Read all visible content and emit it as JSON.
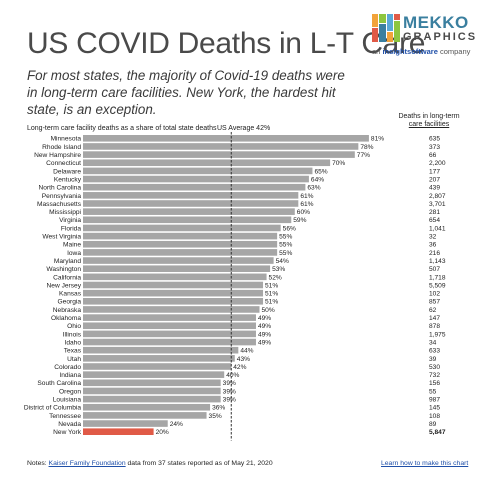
{
  "brand": {
    "word1": "MEKKO",
    "word2": "GRAPHICS",
    "tagline_prefix": "an ",
    "tagline_brand": "insightsoftware",
    "tagline_suffix": " company"
  },
  "header": {
    "title": "US COVID Deaths in L-T Care",
    "subtitle": "For most states, the majority of Covid-19 deaths were in long-term care facilities. New York, the hardest hit state, is an exception."
  },
  "colors": {
    "bar": "#a6a6a6",
    "highlight": "#e05a47",
    "avg_line": "#333333"
  },
  "notes": {
    "prefix": "Notes: ",
    "link": "Kaiser Family Foundation",
    "suffix": " data from 37 states reported as of May 21, 2020",
    "learn_link": "Learn how to make this chart"
  },
  "chart_data": {
    "type": "bar",
    "orientation": "horizontal",
    "title": "Long-term care facility deaths as a share of total state deaths",
    "average_label": "US Average 42%",
    "average_value": 42,
    "value_suffix": "%",
    "deaths_header": [
      "Deaths in long-term",
      "care facilities"
    ],
    "xlim": [
      0,
      100
    ],
    "highlight": "New York",
    "categories": [
      "Minnesota",
      "Rhode Island",
      "New Hampshire",
      "Connecticut",
      "Delaware",
      "Kentucky",
      "North Carolina",
      "Pennsylvania",
      "Massachusetts",
      "Mississippi",
      "Virginia",
      "Florida",
      "West Virginia",
      "Maine",
      "Iowa",
      "Maryland",
      "Washington",
      "California",
      "New Jersey",
      "Kansas",
      "Georgia",
      "Nebraska",
      "Oklahoma",
      "Ohio",
      "Illinois",
      "Idaho",
      "Texas",
      "Utah",
      "Colorado",
      "Indiana",
      "South Carolina",
      "Oregon",
      "Louisiana",
      "District of Columbia",
      "Tennessee",
      "Nevada",
      "New York"
    ],
    "values": [
      81,
      78,
      77,
      70,
      65,
      64,
      63,
      61,
      61,
      60,
      59,
      56,
      55,
      55,
      55,
      54,
      53,
      52,
      51,
      51,
      51,
      50,
      49,
      49,
      49,
      49,
      44,
      43,
      42,
      40,
      39,
      39,
      39,
      36,
      35,
      24,
      20
    ],
    "deaths": [
      "635",
      "373",
      "66",
      "2,200",
      "177",
      "207",
      "439",
      "2,807",
      "3,701",
      "281",
      "654",
      "1,041",
      "32",
      "36",
      "216",
      "1,143",
      "507",
      "1,718",
      "5,509",
      "102",
      "857",
      "62",
      "147",
      "878",
      "1,975",
      "34",
      "633",
      "39",
      "530",
      "732",
      "156",
      "55",
      "987",
      "145",
      "108",
      "89",
      "5,847"
    ]
  }
}
